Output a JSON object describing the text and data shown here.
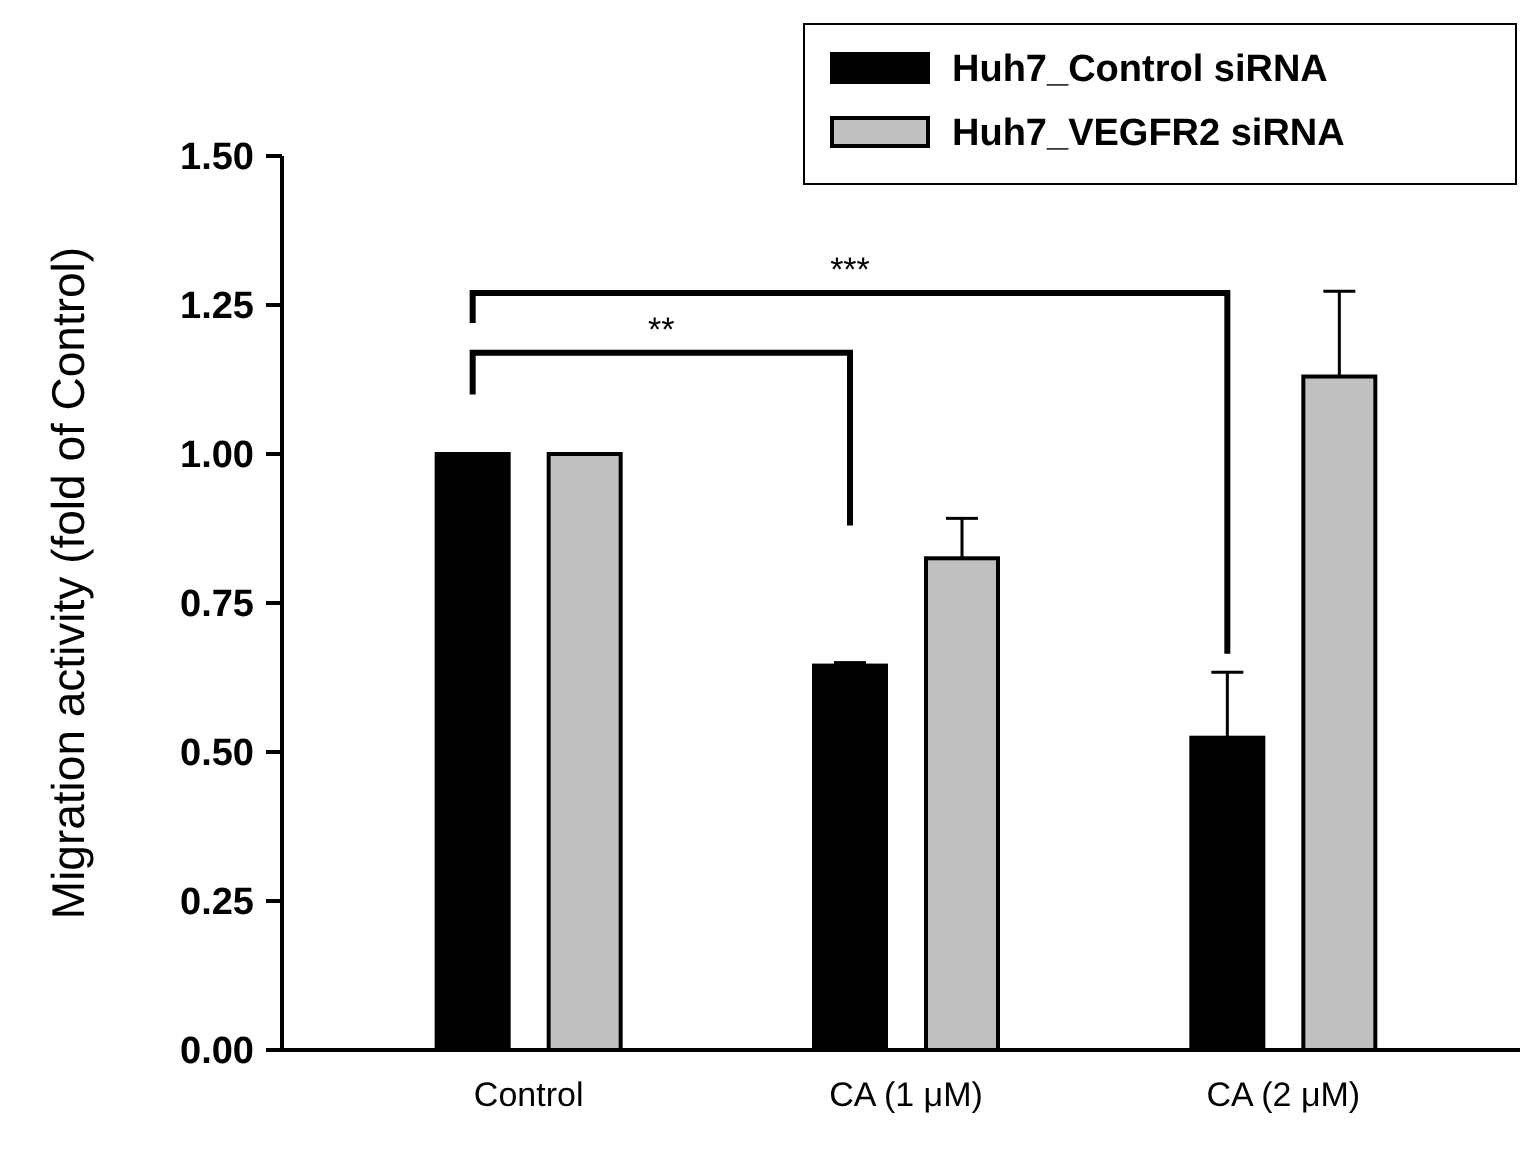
{
  "chart_data": {
    "type": "bar",
    "ylabel": "Migration activity (fold of Control)",
    "categories": [
      "Control",
      "CA (1 μM)",
      "CA (2 μM)"
    ],
    "series": [
      {
        "name": "Huh7_Control siRNA",
        "color": "#000000",
        "values": [
          1.0,
          0.645,
          0.524
        ],
        "errors": [
          null,
          [
            0.645,
            0.65
          ],
          [
            0.524,
            0.634
          ]
        ]
      },
      {
        "name": "Huh7_VEGFR2 siRNA",
        "color": "#c0c0c0",
        "values": [
          1.0,
          0.825,
          1.13
        ],
        "errors": [
          null,
          [
            0.825,
            0.892
          ],
          [
            1.13,
            1.273
          ]
        ]
      }
    ],
    "ylim": [
      0,
      1.5
    ],
    "yticks": [
      {
        "value": 0,
        "label": "0.00"
      },
      {
        "value": 0.25,
        "label": "0.25"
      },
      {
        "value": 0.5,
        "label": "0.50"
      },
      {
        "value": 0.75,
        "label": "0.75"
      },
      {
        "value": 1,
        "label": "1.00"
      },
      {
        "value": 1.25,
        "label": "1.25"
      },
      {
        "value": 1.5,
        "label": "1.50"
      }
    ],
    "annotations": [
      "**",
      "***"
    ],
    "legend": "top right",
    "grid": false
  }
}
